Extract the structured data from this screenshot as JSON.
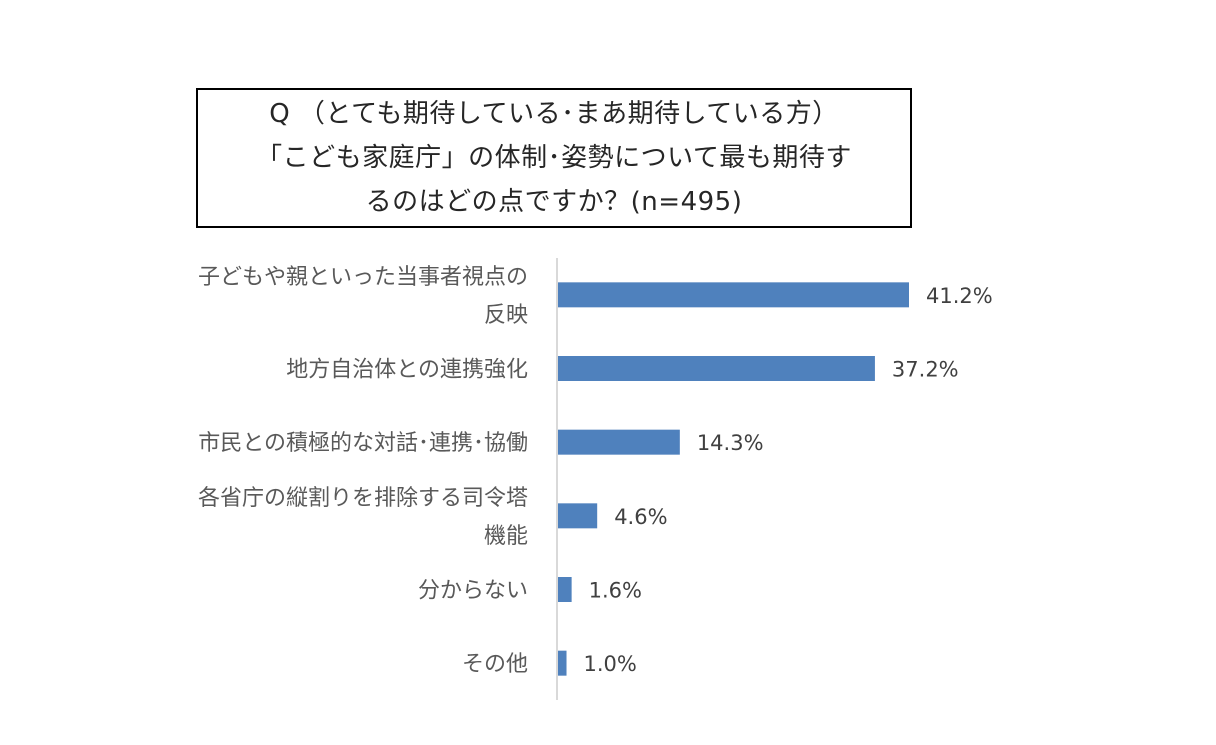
{
  "title": {
    "lines": [
      "Q （とても期待している･まあ期待している方）",
      "「こども家庭庁」の体制･姿勢について最も期待す",
      "るのはどの点ですか？(n=495)"
    ]
  },
  "chart_data": {
    "type": "bar",
    "orientation": "horizontal",
    "title": "Q （とても期待している･まあ期待している方）「こども家庭庁」の体制･姿勢について最も期待するのはどの点ですか？(n=495)",
    "categories": [
      "子どもや親といった当事者視点の反映",
      "地方自治体との連携強化",
      "市民との積極的な対話･連携･協働",
      "各省庁の縦割りを排除する司令塔機能",
      "分からない",
      "その他"
    ],
    "category_lines": [
      [
        "子どもや親といった当事者視点の",
        "反映"
      ],
      [
        "地方自治体との連携強化"
      ],
      [
        "市民との積極的な対話･連携･協働"
      ],
      [
        "各省庁の縦割りを排除する司令塔",
        "機能"
      ],
      [
        "分からない"
      ],
      [
        "その他"
      ]
    ],
    "values": [
      41.2,
      37.2,
      14.3,
      4.6,
      1.6,
      1.0
    ],
    "value_labels": [
      "41.2%",
      "37.2%",
      "14.3%",
      "4.6%",
      "1.6%",
      "1.0%"
    ],
    "xlim": [
      0,
      50
    ],
    "grid": false,
    "legend": "none",
    "colors": {
      "bar": "#4F81BD",
      "axis": "#D9D9D9"
    }
  }
}
